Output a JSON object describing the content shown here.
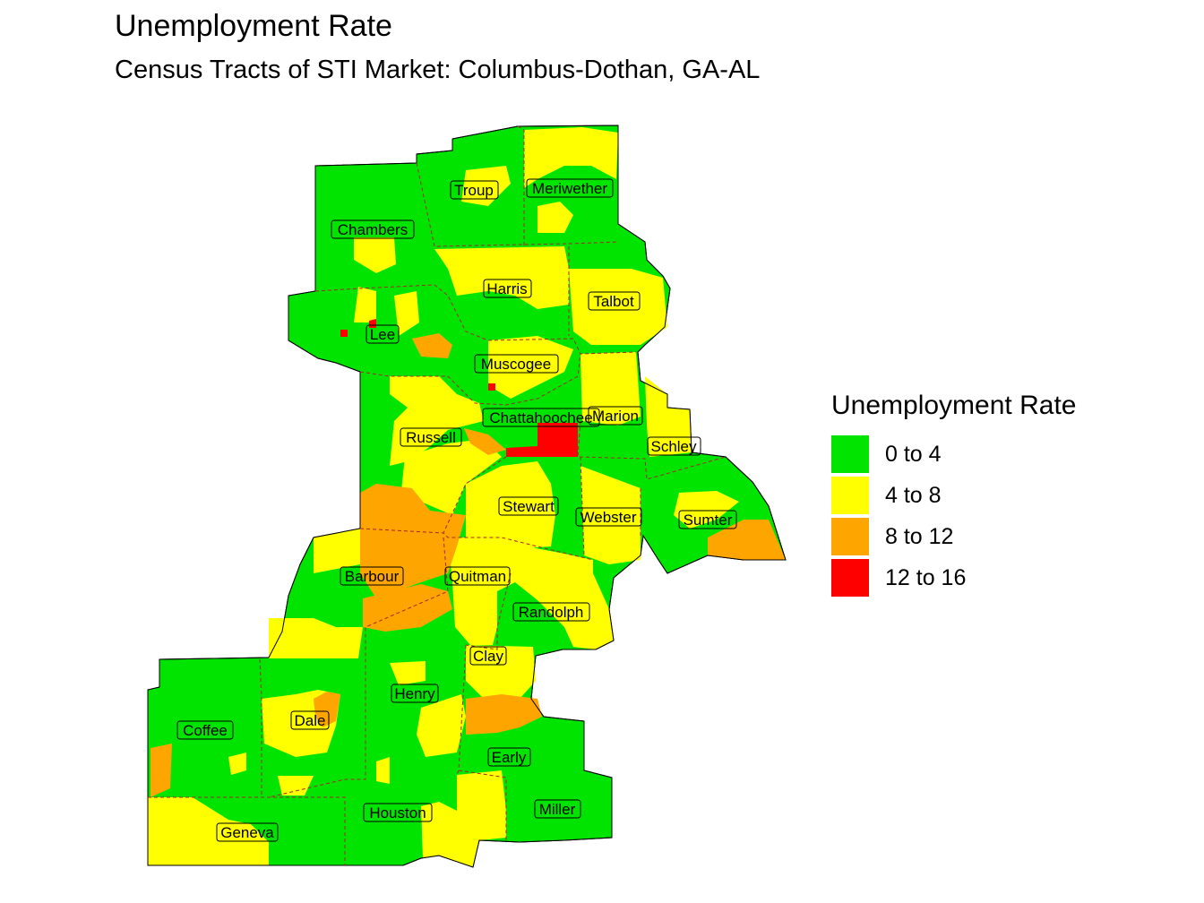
{
  "title": "Unemployment Rate",
  "subtitle": "Census Tracts of STI Market: Columbus-Dothan,  GA-AL",
  "legend": {
    "title": "Unemployment Rate",
    "items": [
      {
        "label": "0 to 4",
        "color": "#00e400"
      },
      {
        "label": "4 to 8",
        "color": "#ffff00"
      },
      {
        "label": "8 to 12",
        "color": "#ffa500"
      },
      {
        "label": "12 to 16",
        "color": "#ff0000"
      }
    ]
  },
  "counties": [
    "Troup",
    "Meriwether",
    "Chambers",
    "Harris",
    "Talbot",
    "Lee",
    "Muscogee",
    "Chattahoochee",
    "Marion",
    "Russell",
    "Schley",
    "Stewart",
    "Webster",
    "Sumter",
    "Barbour",
    "Quitman",
    "Randolph",
    "Clay",
    "Henry",
    "Dale",
    "Coffee",
    "Early",
    "Houston",
    "Miller",
    "Geneva"
  ]
}
